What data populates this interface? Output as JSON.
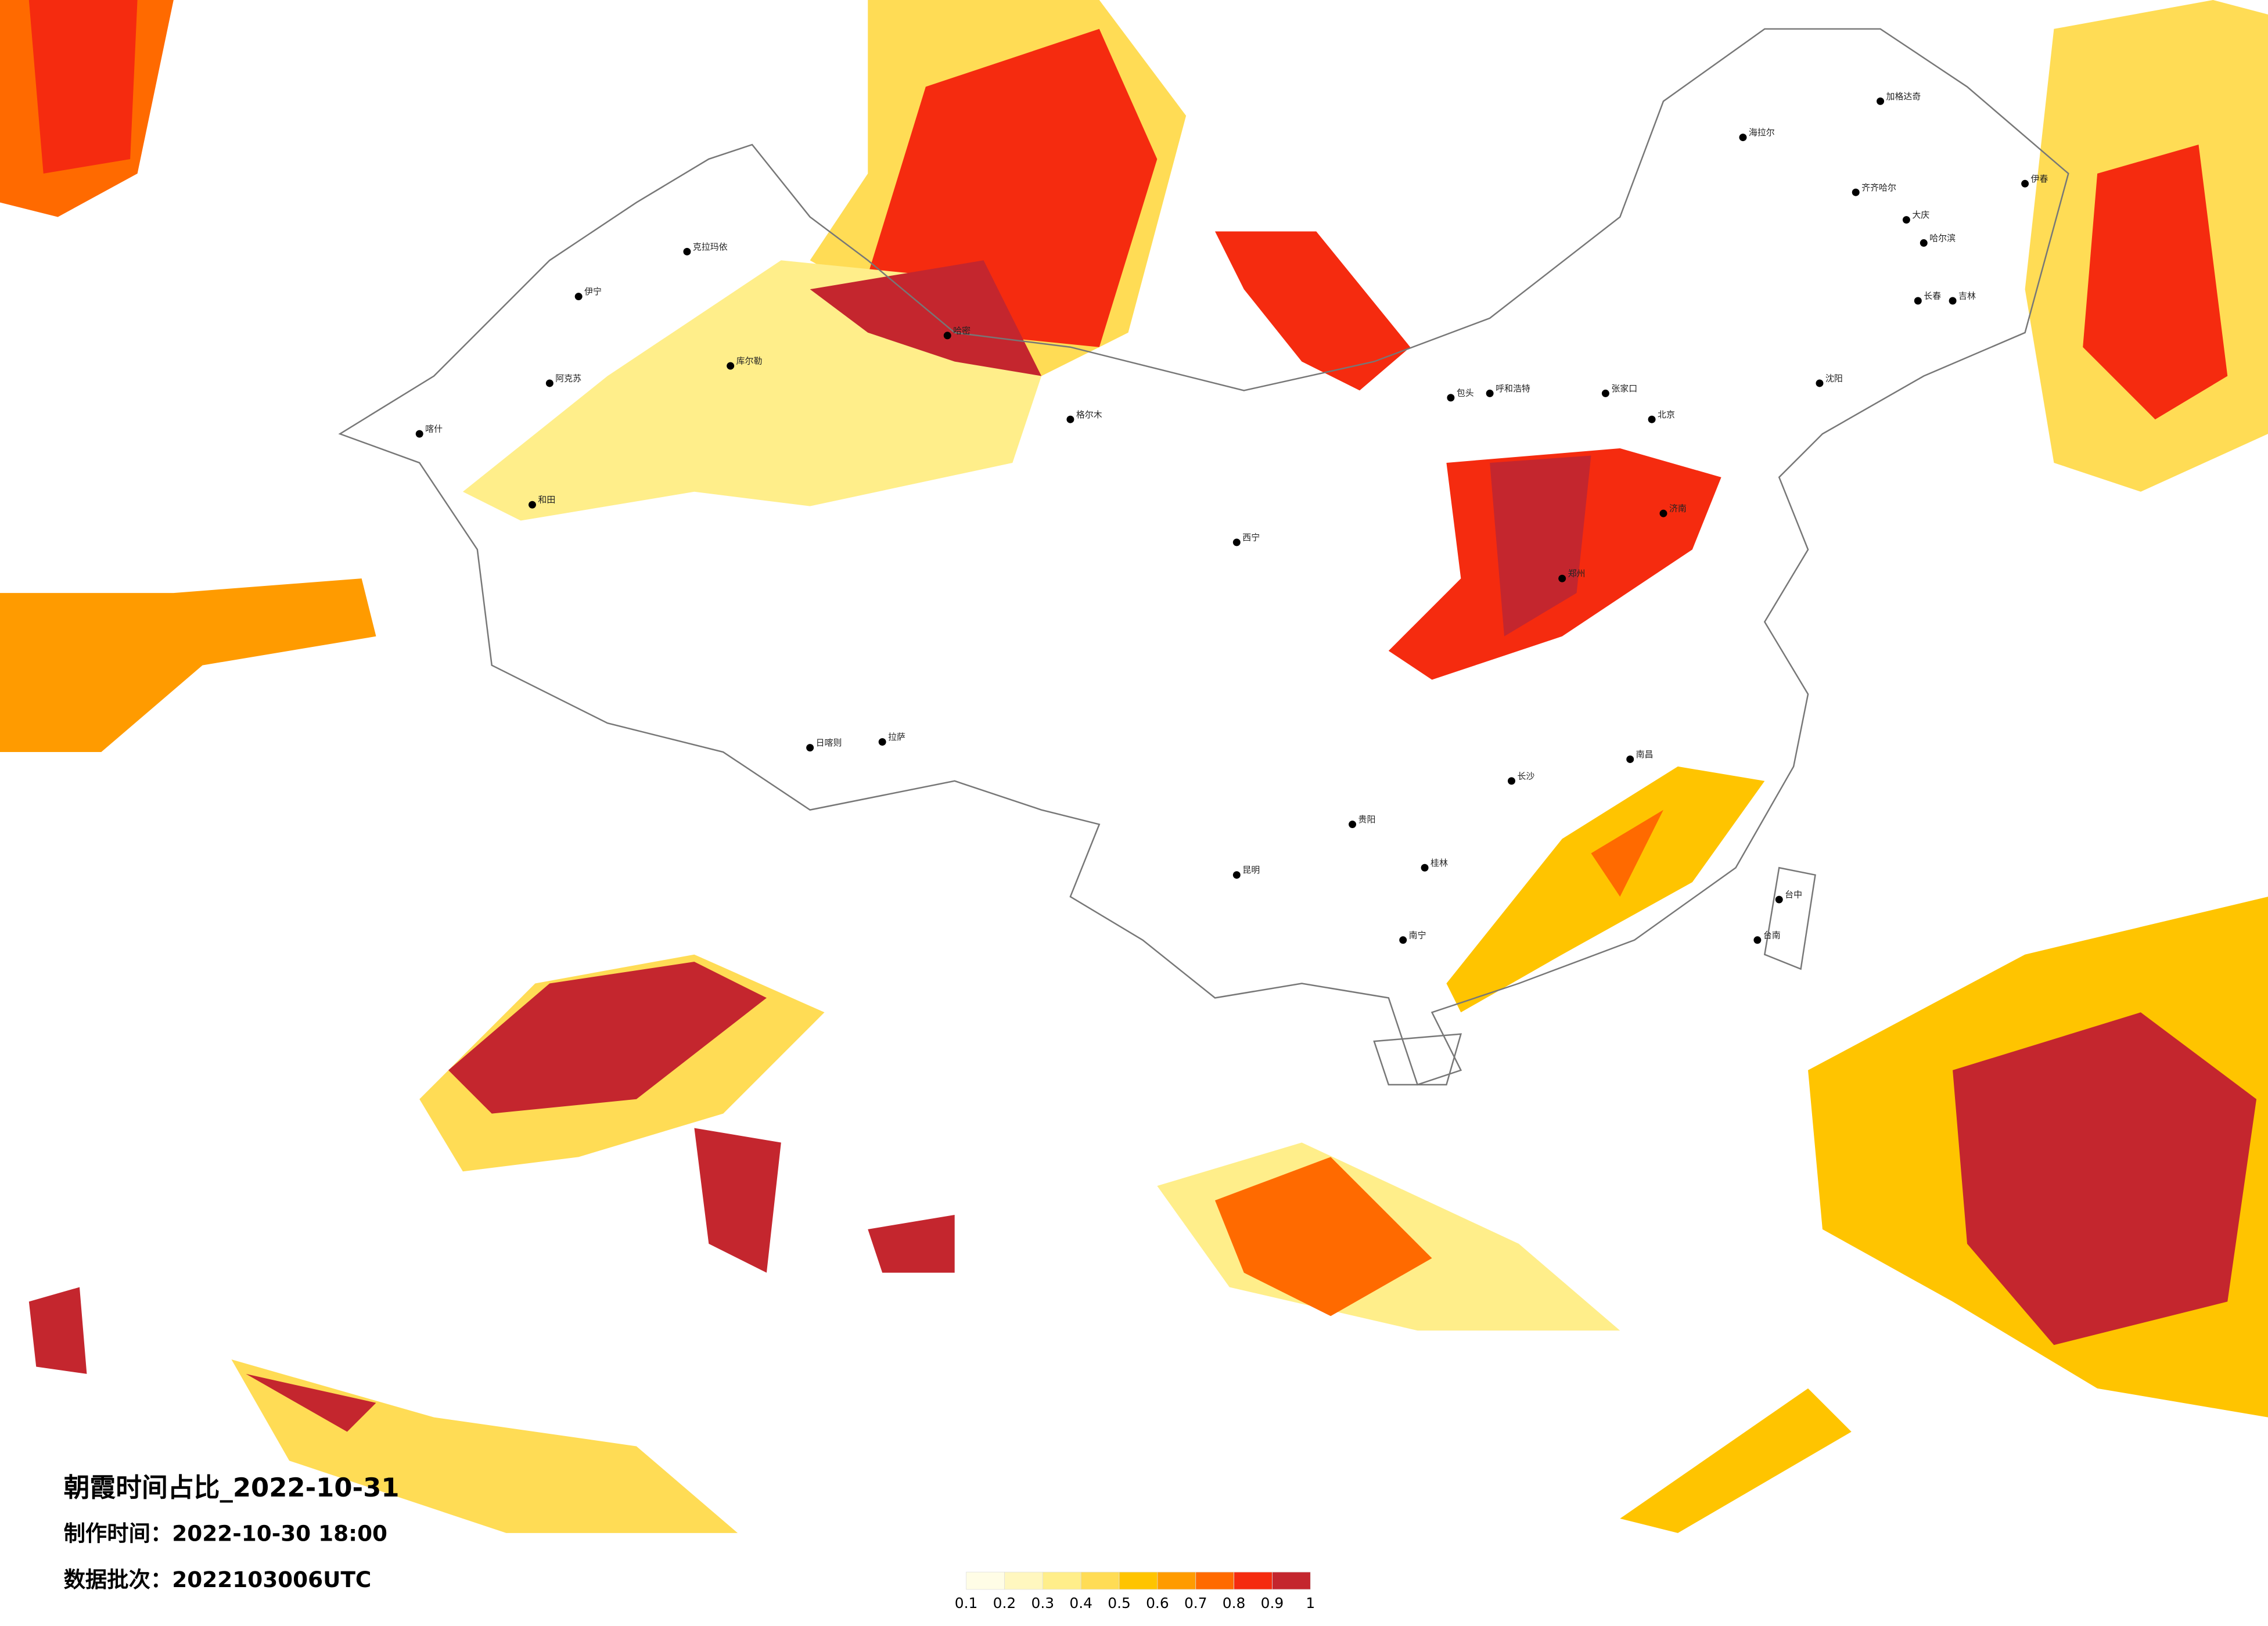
{
  "title": "朝霞时间占比_2022-10-31",
  "made_time": {
    "label": "制作时间：",
    "value": "2022-10-30 18:00"
  },
  "batch": {
    "label": "数据批次：",
    "value": "2022103006UTC"
  },
  "legend": {
    "ticks": [
      0.1,
      0.2,
      0.3,
      0.4,
      0.5,
      0.6,
      0.7,
      0.8,
      0.9,
      1
    ],
    "colors": [
      "#fffde6",
      "#fff7bf",
      "#ffee8a",
      "#ffdc55",
      "#ffc400",
      "#ff9b00",
      "#ff6a00",
      "#f52b0f",
      "#c4262e"
    ]
  },
  "cities": [
    "加格达奇",
    "海拉尔",
    "伊春",
    "齐齐哈尔",
    "大庆",
    "哈尔滨",
    "长春",
    "吉林",
    "沈阳",
    "呼和浩特",
    "包头",
    "张家口",
    "北京",
    "济南",
    "郑州",
    "南昌",
    "长沙",
    "贵阳",
    "昆明",
    "南宁",
    "桂林",
    "日喀则",
    "拉萨",
    "喀什",
    "伊宁",
    "克拉玛依",
    "哈密",
    "库尔勒",
    "阿克苏",
    "和田",
    "格尔木",
    "西宁",
    "台中",
    "台南"
  ]
}
